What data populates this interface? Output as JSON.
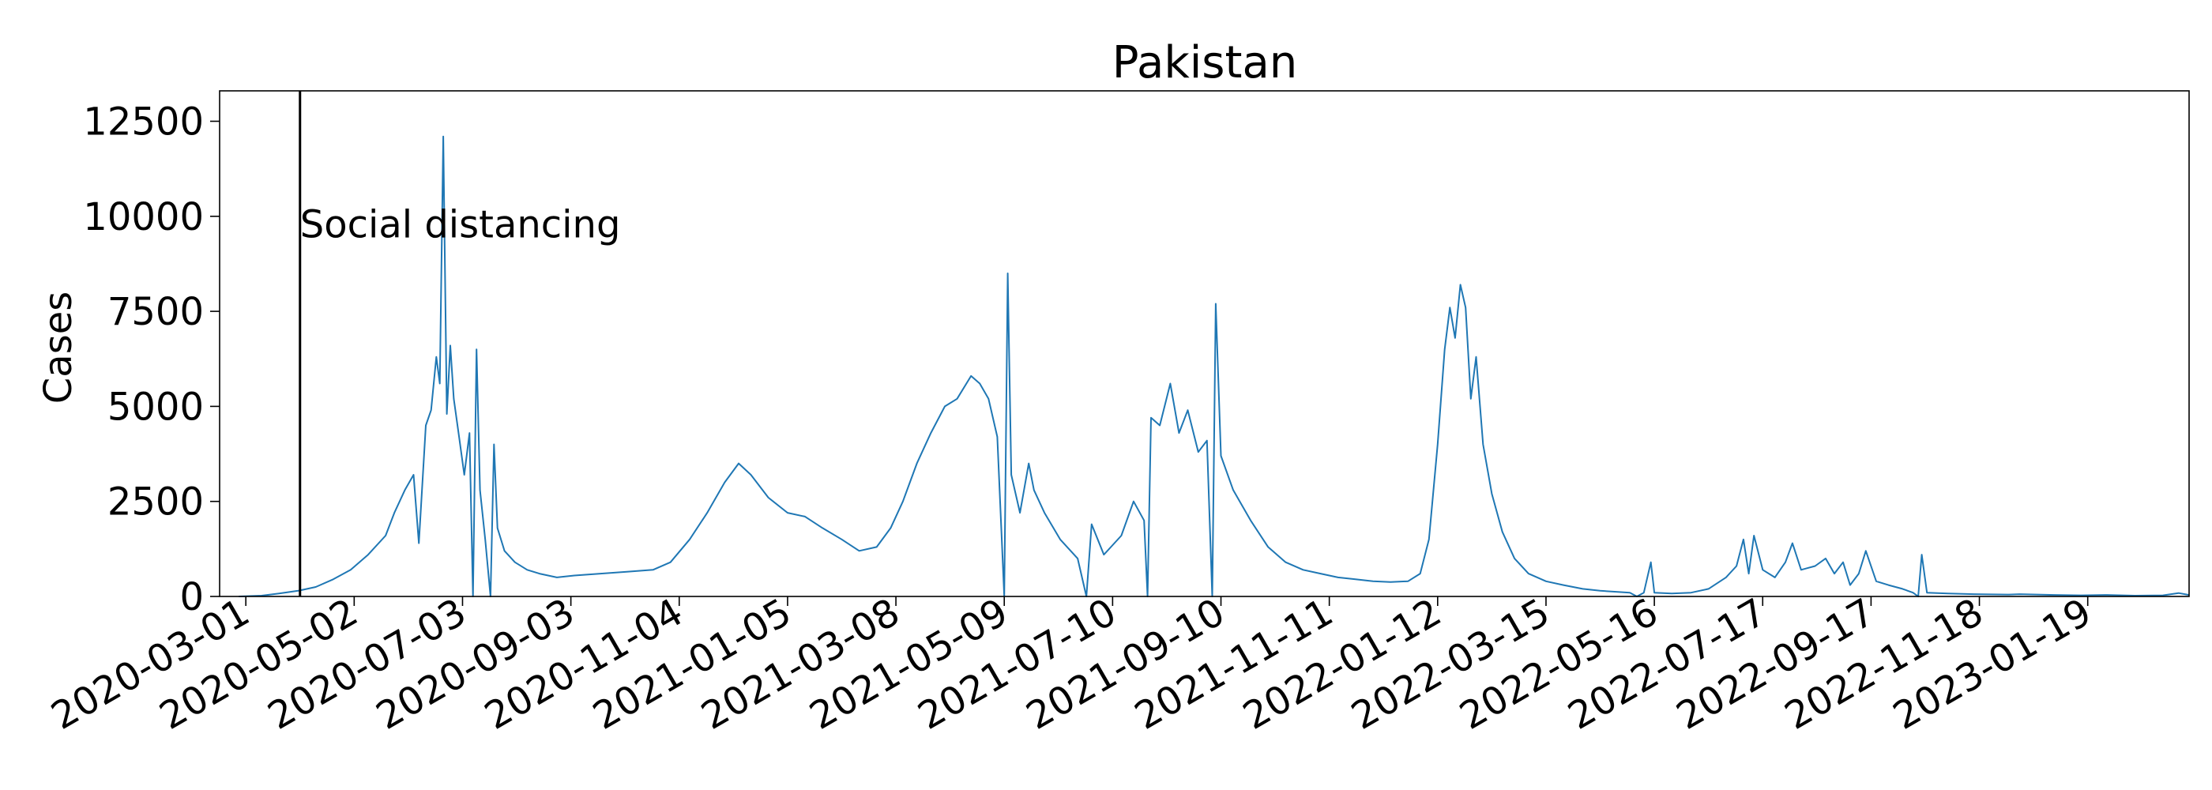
{
  "chart_data": {
    "type": "line",
    "title": "Pakistan",
    "xlabel": "",
    "ylabel": "Cases",
    "ylim": [
      0,
      13300
    ],
    "yticks": [
      0,
      2500,
      5000,
      7500,
      10000,
      12500
    ],
    "ytick_labels": [
      "0",
      "2500",
      "5000",
      "7500",
      "10000",
      "12500"
    ],
    "xlim": [
      "2020-02-15",
      "2023-03-18"
    ],
    "xticks": [
      "2020-03-01",
      "2020-05-02",
      "2020-07-03",
      "2020-09-03",
      "2020-11-04",
      "2021-01-05",
      "2021-03-08",
      "2021-05-09",
      "2021-07-10",
      "2021-09-10",
      "2021-11-11",
      "2022-01-12",
      "2022-03-15",
      "2022-05-16",
      "2022-07-17",
      "2022-09-17",
      "2022-11-18",
      "2023-01-19"
    ],
    "xtick_labels": [
      "2020-03-01",
      "2020-05-02",
      "2020-07-03",
      "2020-09-03",
      "2020-11-04",
      "2021-01-05",
      "2021-03-08",
      "2021-05-09",
      "2021-07-10",
      "2021-09-10",
      "2021-11-11",
      "2022-01-12",
      "2022-03-15",
      "2022-05-16",
      "2022-07-17",
      "2022-09-17",
      "2022-11-18",
      "2023-01-19"
    ],
    "grid": false,
    "annotations": [
      {
        "type": "vline",
        "x": "2020-04-01",
        "label": "Social distancing",
        "label_y": 9800
      }
    ],
    "series": [
      {
        "color": "#1f77b4",
        "points": [
          [
            "2020-02-26",
            0
          ],
          [
            "2020-03-10",
            20
          ],
          [
            "2020-03-20",
            80
          ],
          [
            "2020-03-31",
            150
          ],
          [
            "2020-04-10",
            250
          ],
          [
            "2020-04-20",
            450
          ],
          [
            "2020-04-30",
            700
          ],
          [
            "2020-05-10",
            1100
          ],
          [
            "2020-05-20",
            1600
          ],
          [
            "2020-05-25",
            2200
          ],
          [
            "2020-05-31",
            2800
          ],
          [
            "2020-06-05",
            3200
          ],
          [
            "2020-06-08",
            1400
          ],
          [
            "2020-06-12",
            4500
          ],
          [
            "2020-06-15",
            4900
          ],
          [
            "2020-06-18",
            6300
          ],
          [
            "2020-06-20",
            5600
          ],
          [
            "2020-06-22",
            12100
          ],
          [
            "2020-06-24",
            4800
          ],
          [
            "2020-06-26",
            6600
          ],
          [
            "2020-06-28",
            5200
          ],
          [
            "2020-07-01",
            4200
          ],
          [
            "2020-07-04",
            3200
          ],
          [
            "2020-07-07",
            4300
          ],
          [
            "2020-07-09",
            0
          ],
          [
            "2020-07-11",
            6500
          ],
          [
            "2020-07-13",
            2800
          ],
          [
            "2020-07-16",
            1500
          ],
          [
            "2020-07-19",
            0
          ],
          [
            "2020-07-21",
            4000
          ],
          [
            "2020-07-23",
            1800
          ],
          [
            "2020-07-27",
            1200
          ],
          [
            "2020-08-02",
            900
          ],
          [
            "2020-08-09",
            700
          ],
          [
            "2020-08-16",
            600
          ],
          [
            "2020-08-26",
            500
          ],
          [
            "2020-09-05",
            550
          ],
          [
            "2020-09-20",
            600
          ],
          [
            "2020-10-05",
            650
          ],
          [
            "2020-10-20",
            700
          ],
          [
            "2020-10-30",
            900
          ],
          [
            "2020-11-10",
            1500
          ],
          [
            "2020-11-20",
            2200
          ],
          [
            "2020-11-30",
            3000
          ],
          [
            "2020-12-08",
            3500
          ],
          [
            "2020-12-15",
            3200
          ],
          [
            "2020-12-25",
            2600
          ],
          [
            "2021-01-05",
            2200
          ],
          [
            "2021-01-15",
            2100
          ],
          [
            "2021-01-25",
            1800
          ],
          [
            "2021-02-05",
            1500
          ],
          [
            "2021-02-15",
            1200
          ],
          [
            "2021-02-25",
            1300
          ],
          [
            "2021-03-05",
            1800
          ],
          [
            "2021-03-12",
            2500
          ],
          [
            "2021-03-20",
            3500
          ],
          [
            "2021-03-28",
            4300
          ],
          [
            "2021-04-05",
            5000
          ],
          [
            "2021-04-12",
            5200
          ],
          [
            "2021-04-20",
            5800
          ],
          [
            "2021-04-25",
            5600
          ],
          [
            "2021-04-30",
            5200
          ],
          [
            "2021-05-05",
            4200
          ],
          [
            "2021-05-09",
            0
          ],
          [
            "2021-05-11",
            8500
          ],
          [
            "2021-05-13",
            3200
          ],
          [
            "2021-05-18",
            2200
          ],
          [
            "2021-05-23",
            3500
          ],
          [
            "2021-05-26",
            2800
          ],
          [
            "2021-06-01",
            2200
          ],
          [
            "2021-06-10",
            1500
          ],
          [
            "2021-06-20",
            1000
          ],
          [
            "2021-06-25",
            0
          ],
          [
            "2021-06-28",
            1900
          ],
          [
            "2021-07-05",
            1100
          ],
          [
            "2021-07-15",
            1600
          ],
          [
            "2021-07-22",
            2500
          ],
          [
            "2021-07-28",
            2000
          ],
          [
            "2021-07-30",
            0
          ],
          [
            "2021-08-01",
            4700
          ],
          [
            "2021-08-06",
            4500
          ],
          [
            "2021-08-12",
            5600
          ],
          [
            "2021-08-17",
            4300
          ],
          [
            "2021-08-22",
            4900
          ],
          [
            "2021-08-28",
            3800
          ],
          [
            "2021-09-02",
            4100
          ],
          [
            "2021-09-05",
            0
          ],
          [
            "2021-09-07",
            7700
          ],
          [
            "2021-09-10",
            3700
          ],
          [
            "2021-09-17",
            2800
          ],
          [
            "2021-09-27",
            2000
          ],
          [
            "2021-10-07",
            1300
          ],
          [
            "2021-10-17",
            900
          ],
          [
            "2021-10-27",
            700
          ],
          [
            "2021-11-06",
            600
          ],
          [
            "2021-11-16",
            500
          ],
          [
            "2021-11-26",
            450
          ],
          [
            "2021-12-06",
            400
          ],
          [
            "2021-12-16",
            380
          ],
          [
            "2021-12-26",
            400
          ],
          [
            "2022-01-02",
            600
          ],
          [
            "2022-01-07",
            1500
          ],
          [
            "2022-01-12",
            4000
          ],
          [
            "2022-01-16",
            6500
          ],
          [
            "2022-01-19",
            7600
          ],
          [
            "2022-01-22",
            6800
          ],
          [
            "2022-01-25",
            8200
          ],
          [
            "2022-01-28",
            7600
          ],
          [
            "2022-01-31",
            5200
          ],
          [
            "2022-02-03",
            6300
          ],
          [
            "2022-02-07",
            4000
          ],
          [
            "2022-02-12",
            2700
          ],
          [
            "2022-02-18",
            1700
          ],
          [
            "2022-02-25",
            1000
          ],
          [
            "2022-03-05",
            600
          ],
          [
            "2022-03-15",
            400
          ],
          [
            "2022-03-25",
            300
          ],
          [
            "2022-04-05",
            200
          ],
          [
            "2022-04-15",
            150
          ],
          [
            "2022-04-25",
            120
          ],
          [
            "2022-05-02",
            100
          ],
          [
            "2022-05-06",
            0
          ],
          [
            "2022-05-10",
            100
          ],
          [
            "2022-05-14",
            900
          ],
          [
            "2022-05-16",
            100
          ],
          [
            "2022-05-26",
            80
          ],
          [
            "2022-06-06",
            100
          ],
          [
            "2022-06-16",
            200
          ],
          [
            "2022-06-26",
            500
          ],
          [
            "2022-07-02",
            800
          ],
          [
            "2022-07-06",
            1500
          ],
          [
            "2022-07-09",
            600
          ],
          [
            "2022-07-12",
            1600
          ],
          [
            "2022-07-17",
            700
          ],
          [
            "2022-07-24",
            500
          ],
          [
            "2022-07-30",
            900
          ],
          [
            "2022-08-03",
            1400
          ],
          [
            "2022-08-08",
            700
          ],
          [
            "2022-08-16",
            800
          ],
          [
            "2022-08-22",
            1000
          ],
          [
            "2022-08-27",
            600
          ],
          [
            "2022-09-01",
            900
          ],
          [
            "2022-09-05",
            300
          ],
          [
            "2022-09-10",
            600
          ],
          [
            "2022-09-14",
            1200
          ],
          [
            "2022-09-20",
            400
          ],
          [
            "2022-09-27",
            300
          ],
          [
            "2022-10-05",
            200
          ],
          [
            "2022-10-11",
            100
          ],
          [
            "2022-10-14",
            0
          ],
          [
            "2022-10-16",
            1100
          ],
          [
            "2022-10-19",
            100
          ],
          [
            "2022-10-31",
            80
          ],
          [
            "2022-11-15",
            60
          ],
          [
            "2022-12-05",
            50
          ],
          [
            "2022-12-11",
            60
          ],
          [
            "2022-12-31",
            40
          ],
          [
            "2023-01-15",
            30
          ],
          [
            "2023-01-29",
            40
          ],
          [
            "2023-02-15",
            20
          ],
          [
            "2023-03-03",
            30
          ],
          [
            "2023-03-12",
            90
          ],
          [
            "2023-03-18",
            40
          ]
        ]
      }
    ]
  }
}
